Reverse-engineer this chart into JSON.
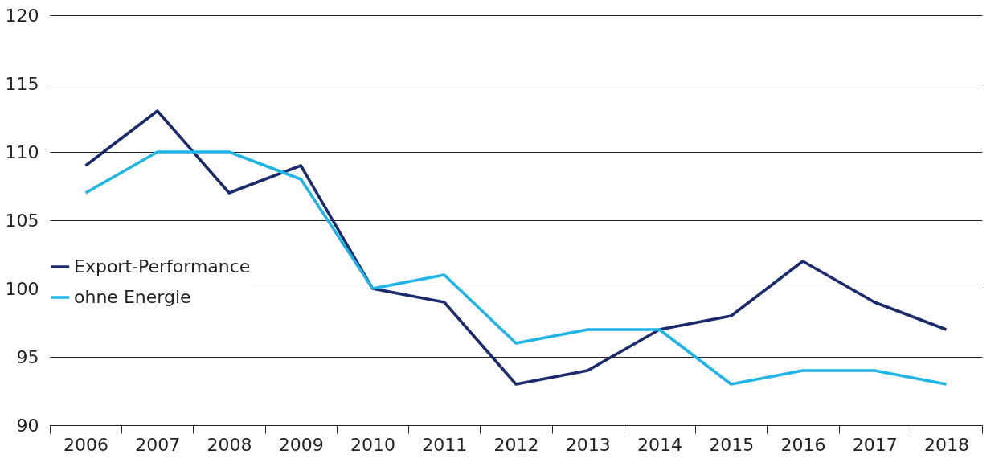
{
  "chart_data": {
    "type": "line",
    "categories": [
      "2006",
      "2007",
      "2008",
      "2009",
      "2010",
      "2011",
      "2012",
      "2013",
      "2014",
      "2015",
      "2016",
      "2017",
      "2018"
    ],
    "series": [
      {
        "name": "Export-Performance",
        "color": "#1a2a6c",
        "values": [
          109,
          113,
          107,
          109,
          100,
          99,
          93,
          94,
          97,
          98,
          102,
          99,
          97
        ]
      },
      {
        "name": "ohne Energie",
        "color": "#1eb4e8",
        "values": [
          107,
          110,
          110,
          108,
          100,
          101,
          96,
          97,
          97,
          93,
          94,
          94,
          93
        ]
      }
    ],
    "ylim": [
      90,
      120
    ],
    "yticks": [
      90,
      95,
      100,
      105,
      110,
      115,
      120
    ],
    "grid": "y",
    "legend": "left",
    "marker": "none",
    "line_style": "solid"
  }
}
